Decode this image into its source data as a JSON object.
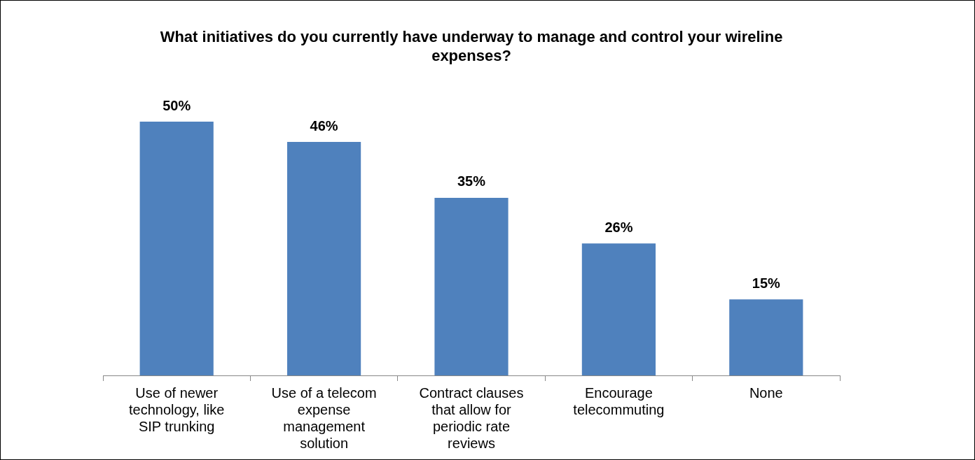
{
  "chart_data": {
    "type": "bar",
    "title": "What initiatives do you currently have underway to manage and control your wireline expenses?",
    "categories": [
      "Use of newer technology, like SIP trunking",
      "Use of a telecom expense management solution",
      "Contract clauses that allow for periodic rate reviews",
      "Encourage telecommuting",
      "None"
    ],
    "values": [
      50,
      46,
      35,
      26,
      15
    ],
    "value_labels": [
      "50%",
      "46%",
      "35%",
      "26%",
      "15%"
    ],
    "color": "#4f81bd",
    "legend": false,
    "grid": false
  }
}
